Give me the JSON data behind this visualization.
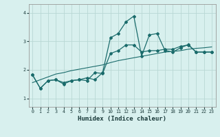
{
  "xlabel": "Humidex (Indice chaleur)",
  "ylabel": "",
  "xlim": [
    -0.5,
    23.5
  ],
  "ylim": [
    0.7,
    4.3
  ],
  "xticks": [
    0,
    1,
    2,
    3,
    4,
    5,
    6,
    7,
    8,
    9,
    10,
    11,
    12,
    13,
    14,
    15,
    16,
    17,
    18,
    19,
    20,
    21,
    22,
    23
  ],
  "yticks": [
    1,
    2,
    3,
    4
  ],
  "background_color": "#d8f0ee",
  "grid_color": "#b8d8d4",
  "line_color": "#1a6b6b",
  "line1_y": [
    1.82,
    1.35,
    1.62,
    1.65,
    1.55,
    1.62,
    1.65,
    1.72,
    1.65,
    1.9,
    3.12,
    3.27,
    3.68,
    3.88,
    2.48,
    3.22,
    3.27,
    2.68,
    2.62,
    2.77,
    2.88,
    2.62,
    2.62,
    2.62
  ],
  "line2_y": [
    1.82,
    1.35,
    1.62,
    1.65,
    1.5,
    1.62,
    1.65,
    1.62,
    1.9,
    1.87,
    2.57,
    2.67,
    2.87,
    2.87,
    2.62,
    2.67,
    2.67,
    2.72,
    2.72,
    2.82,
    2.87,
    2.62,
    2.62,
    2.62
  ],
  "line3_y": [
    1.55,
    1.65,
    1.75,
    1.85,
    1.9,
    1.97,
    2.02,
    2.07,
    2.12,
    2.17,
    2.25,
    2.32,
    2.37,
    2.42,
    2.47,
    2.52,
    2.57,
    2.62,
    2.64,
    2.67,
    2.72,
    2.75,
    2.77,
    2.8
  ]
}
